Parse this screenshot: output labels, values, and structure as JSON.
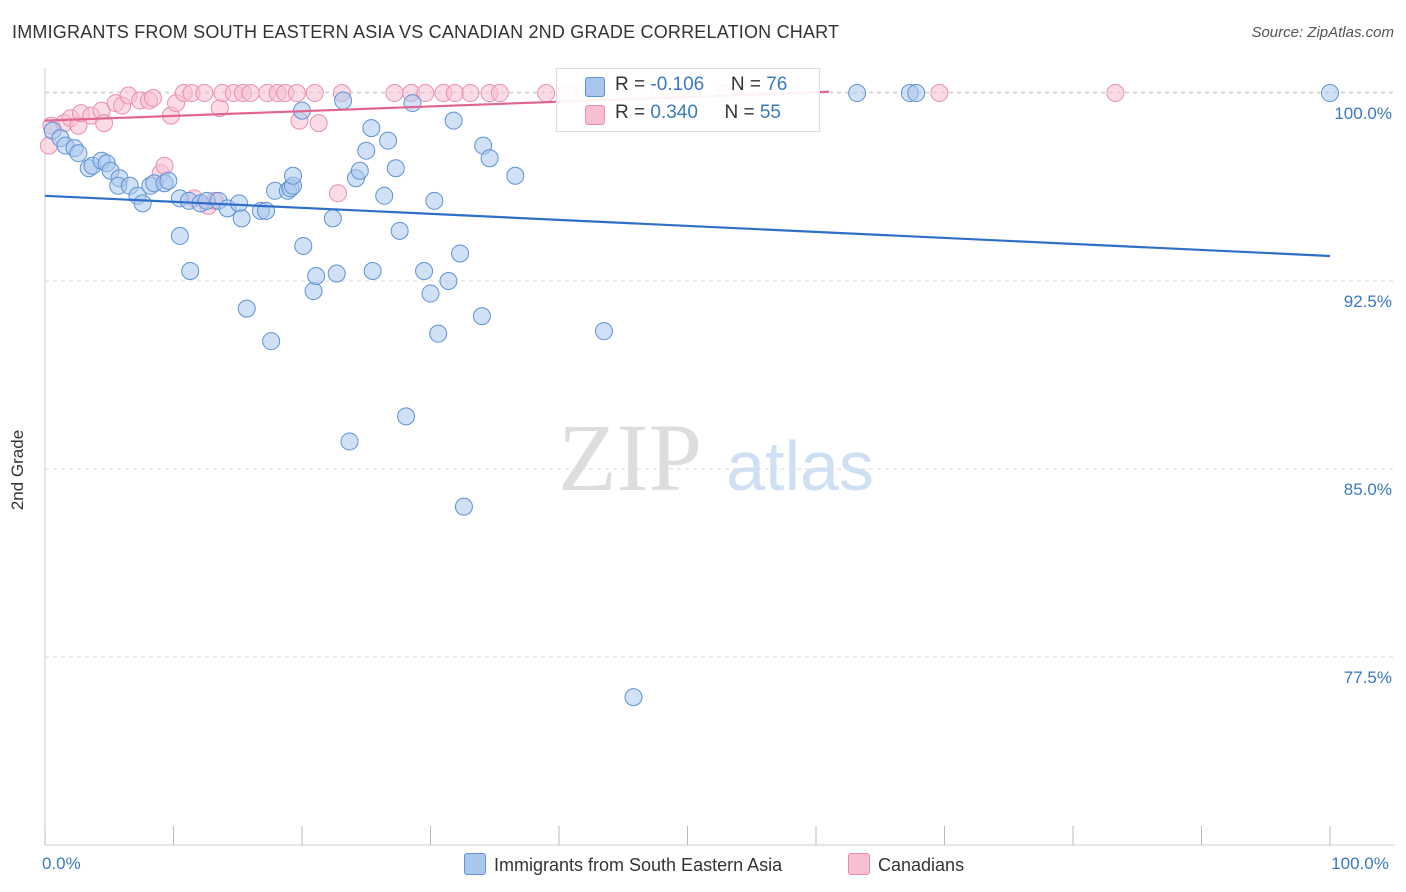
{
  "title": "IMMIGRANTS FROM SOUTH EASTERN ASIA VS CANADIAN 2ND GRADE CORRELATION CHART",
  "source": "Source: ZipAtlas.com",
  "watermark": {
    "zip": "ZIP",
    "atlas": "atlas"
  },
  "legend": {
    "series1": {
      "r_label": "R = ",
      "r_value": "-0.106",
      "n_label": "N = ",
      "n_value": "76"
    },
    "series2": {
      "r_label": "R = ",
      "r_value": "0.340",
      "n_label": "N = ",
      "n_value": "55"
    }
  },
  "bottom_legend": {
    "series1": "Immigrants from South Eastern Asia",
    "series2": "Canadians"
  },
  "colors": {
    "blue_fill": "#a9c6ec",
    "blue_stroke": "#5f92d6",
    "blue_line": "#2f6fc7",
    "pink_fill": "#f7bfd1",
    "pink_stroke": "#e98fae",
    "pink_line": "#e0668f",
    "tick_label": "#3b78c4",
    "grid": "#d8d8d8"
  },
  "chart_data": {
    "type": "scatter",
    "title": "IMMIGRANTS FROM SOUTH EASTERN ASIA VS CANADIAN 2ND GRADE CORRELATION CHART",
    "xlabel": "",
    "ylabel": "2nd Grade",
    "xlim": [
      0,
      100
    ],
    "ylim": [
      70.0,
      100.6
    ],
    "x_tick_labels": [
      {
        "value": 0,
        "label": "0.0%"
      },
      {
        "value": 100,
        "label": "100.0%"
      }
    ],
    "y_tick_labels": [
      {
        "value": 100.0,
        "label": "100.0%"
      },
      {
        "value": 92.5,
        "label": "92.5%"
      },
      {
        "value": 85.0,
        "label": "85.0%"
      },
      {
        "value": 77.5,
        "label": "77.5%"
      }
    ],
    "series": [
      {
        "name": "Immigrants from South Eastern Asia",
        "color": "blue",
        "trend": {
          "x": [
            0,
            100
          ],
          "y": [
            95.9,
            93.5
          ]
        },
        "points": [
          [
            0.6,
            98.5
          ],
          [
            1.2,
            98.2
          ],
          [
            1.6,
            97.9
          ],
          [
            2.3,
            97.8
          ],
          [
            2.6,
            97.6
          ],
          [
            3.4,
            97.0
          ],
          [
            3.7,
            97.1
          ],
          [
            4.4,
            97.3
          ],
          [
            4.8,
            97.2
          ],
          [
            5.1,
            96.9
          ],
          [
            5.8,
            96.6
          ],
          [
            5.7,
            96.3
          ],
          [
            6.6,
            96.3
          ],
          [
            7.2,
            95.9
          ],
          [
            7.6,
            95.6
          ],
          [
            8.2,
            96.3
          ],
          [
            8.5,
            96.4
          ],
          [
            9.3,
            96.4
          ],
          [
            9.6,
            96.5
          ],
          [
            10.5,
            95.8
          ],
          [
            11.2,
            95.7
          ],
          [
            12.1,
            95.6
          ],
          [
            12.6,
            95.7
          ],
          [
            13.5,
            95.7
          ],
          [
            14.2,
            95.4
          ],
          [
            15.1,
            95.6
          ],
          [
            15.3,
            95.0
          ],
          [
            16.8,
            95.3
          ],
          [
            17.2,
            95.3
          ],
          [
            17.9,
            96.1
          ],
          [
            18.9,
            96.1
          ],
          [
            19.1,
            96.2
          ],
          [
            19.3,
            96.3
          ],
          [
            19.3,
            96.7
          ],
          [
            10.5,
            94.3
          ],
          [
            11.3,
            92.9
          ],
          [
            15.7,
            91.4
          ],
          [
            17.6,
            90.1
          ],
          [
            20.0,
            99.3
          ],
          [
            20.1,
            93.9
          ],
          [
            20.9,
            92.1
          ],
          [
            21.1,
            92.7
          ],
          [
            22.4,
            95.0
          ],
          [
            22.7,
            92.8
          ],
          [
            23.2,
            99.7
          ],
          [
            23.7,
            86.1
          ],
          [
            24.2,
            96.6
          ],
          [
            24.5,
            96.9
          ],
          [
            25.0,
            97.7
          ],
          [
            25.4,
            98.6
          ],
          [
            25.5,
            92.9
          ],
          [
            26.4,
            95.9
          ],
          [
            26.7,
            98.1
          ],
          [
            27.3,
            97.0
          ],
          [
            27.6,
            94.5
          ],
          [
            28.1,
            87.1
          ],
          [
            28.6,
            99.6
          ],
          [
            29.5,
            92.9
          ],
          [
            30.0,
            92.0
          ],
          [
            30.3,
            95.7
          ],
          [
            30.6,
            90.4
          ],
          [
            31.4,
            92.5
          ],
          [
            31.8,
            98.9
          ],
          [
            32.3,
            93.6
          ],
          [
            32.6,
            83.5
          ],
          [
            34.0,
            91.1
          ],
          [
            34.1,
            97.9
          ],
          [
            34.6,
            97.4
          ],
          [
            36.6,
            96.7
          ],
          [
            43.5,
            90.5
          ],
          [
            42.0,
            100.0
          ],
          [
            45.8,
            75.9
          ],
          [
            63.2,
            100.0
          ],
          [
            67.3,
            100.0
          ],
          [
            67.8,
            100.0
          ],
          [
            100.0,
            100.0
          ]
        ]
      },
      {
        "name": "Canadians",
        "color": "pink",
        "trend": {
          "x": [
            0,
            61
          ],
          "y": [
            98.9,
            100.05
          ]
        },
        "points": [
          [
            0.3,
            97.9
          ],
          [
            0.5,
            98.7
          ],
          [
            1.5,
            98.8
          ],
          [
            2.0,
            99.0
          ],
          [
            2.6,
            98.7
          ],
          [
            2.8,
            99.2
          ],
          [
            3.6,
            99.1
          ],
          [
            4.4,
            99.3
          ],
          [
            4.6,
            98.8
          ],
          [
            5.5,
            99.6
          ],
          [
            6.0,
            99.5
          ],
          [
            6.5,
            99.9
          ],
          [
            7.4,
            99.7
          ],
          [
            8.1,
            99.7
          ],
          [
            8.4,
            99.8
          ],
          [
            9.0,
            96.8
          ],
          [
            9.3,
            97.1
          ],
          [
            9.8,
            99.1
          ],
          [
            10.2,
            99.6
          ],
          [
            10.8,
            100.0
          ],
          [
            11.4,
            100.0
          ],
          [
            11.6,
            95.8
          ],
          [
            12.4,
            100.0
          ],
          [
            12.7,
            95.5
          ],
          [
            13.2,
            95.7
          ],
          [
            13.6,
            99.4
          ],
          [
            13.8,
            100.0
          ],
          [
            14.7,
            100.0
          ],
          [
            15.4,
            100.0
          ],
          [
            16.0,
            100.0
          ],
          [
            17.3,
            100.0
          ],
          [
            18.1,
            100.0
          ],
          [
            18.7,
            100.0
          ],
          [
            19.6,
            100.0
          ],
          [
            19.8,
            98.9
          ],
          [
            21.0,
            100.0
          ],
          [
            21.3,
            98.8
          ],
          [
            22.8,
            96.0
          ],
          [
            23.1,
            100.0
          ],
          [
            27.2,
            100.0
          ],
          [
            28.5,
            100.0
          ],
          [
            29.6,
            100.0
          ],
          [
            31.0,
            100.0
          ],
          [
            31.9,
            100.0
          ],
          [
            33.1,
            100.0
          ],
          [
            34.6,
            100.0
          ],
          [
            35.4,
            100.0
          ],
          [
            39.0,
            100.0
          ],
          [
            40.6,
            100.0
          ],
          [
            42.9,
            100.0
          ],
          [
            47.8,
            100.0
          ],
          [
            52.9,
            100.0
          ],
          [
            54.5,
            100.0
          ],
          [
            69.6,
            100.0
          ],
          [
            83.3,
            100.0
          ]
        ]
      }
    ]
  }
}
